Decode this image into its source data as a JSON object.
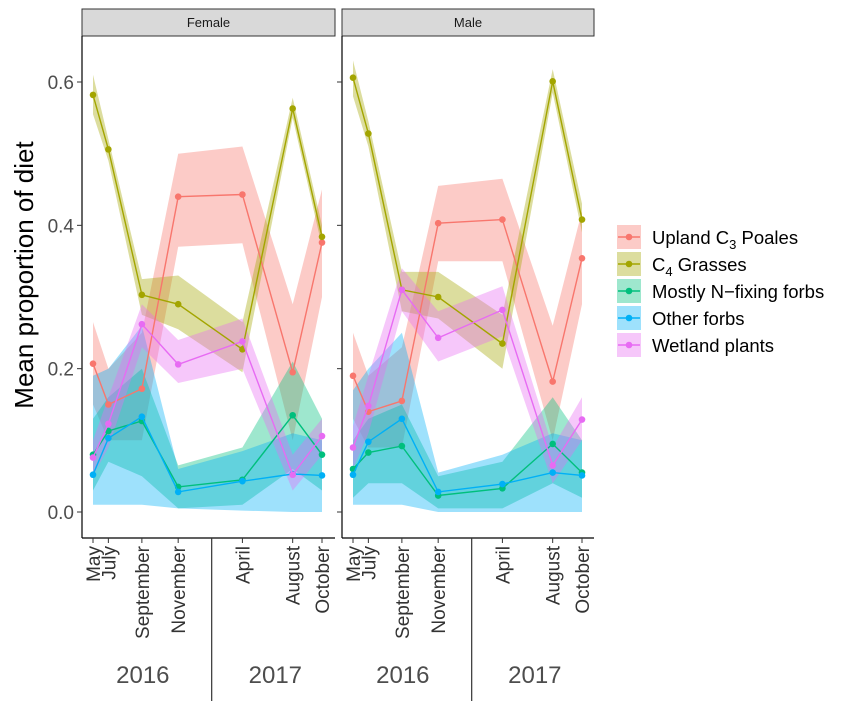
{
  "chart_data": {
    "type": "line",
    "ylabel": "Mean proportion of diet",
    "ylim": [
      0,
      0.65
    ],
    "yticks": [
      0.0,
      0.2,
      0.4,
      0.6
    ],
    "ytick_labels": [
      "0.0",
      "0.2",
      "0.4",
      "0.6"
    ],
    "grid": false,
    "legend_position": "right",
    "x_tick_labels": [
      "May",
      "July",
      "September",
      "November",
      "April",
      "August",
      "October"
    ],
    "x_tick_positions": [
      0,
      0.55,
      1.75,
      3.05,
      5.35,
      7.15,
      8.2
    ],
    "year_labels": [
      "2016",
      "2017"
    ],
    "panels": [
      {
        "title": "Female",
        "series": [
          {
            "name": "Upland C3 Poales",
            "color": "#F8766D",
            "x": [
              0,
              0.55,
              1.75,
              3.05,
              5.35,
              7.15,
              8.2
            ],
            "y": [
              0.207,
              0.15,
              0.172,
              0.44,
              0.443,
              0.195,
              0.376
            ],
            "lower": [
              0.15,
              0.1,
              0.1,
              0.37,
              0.375,
              0.1,
              0.3
            ],
            "upper": [
              0.265,
              0.2,
              0.25,
              0.5,
              0.51,
              0.29,
              0.45
            ]
          },
          {
            "name": "C4 Grasses",
            "color": "#A3A500",
            "x": [
              0,
              0.55,
              1.75,
              3.05,
              5.35,
              7.15,
              8.2
            ],
            "y": [
              0.582,
              0.506,
              0.303,
              0.29,
              0.227,
              0.563,
              0.384
            ],
            "lower": [
              0.555,
              0.49,
              0.275,
              0.255,
              0.195,
              0.55,
              0.37
            ],
            "upper": [
              0.61,
              0.52,
              0.325,
              0.33,
              0.265,
              0.578,
              0.4
            ]
          },
          {
            "name": "Mostly N−fixing forbs",
            "color": "#00BF7D",
            "x": [
              0,
              0.55,
              1.75,
              3.05,
              5.35,
              7.15,
              8.2
            ],
            "y": [
              0.08,
              0.113,
              0.127,
              0.035,
              0.045,
              0.135,
              0.08
            ],
            "lower": [
              0.03,
              0.07,
              0.05,
              0.005,
              0.01,
              0.06,
              0.03
            ],
            "upper": [
              0.13,
              0.16,
              0.2,
              0.065,
              0.09,
              0.21,
              0.13
            ]
          },
          {
            "name": "Other forbs",
            "color": "#00B0F6",
            "x": [
              0,
              0.55,
              1.75,
              3.05,
              5.35,
              7.15,
              8.2
            ],
            "y": [
              0.052,
              0.103,
              0.133,
              0.028,
              0.043,
              0.053,
              0.051
            ],
            "lower": [
              0.01,
              0.01,
              0.01,
              0.005,
              0.002,
              0.0,
              0.0
            ],
            "upper": [
              0.19,
              0.2,
              0.26,
              0.06,
              0.085,
              0.11,
              0.1
            ]
          },
          {
            "name": "Wetland plants",
            "color": "#E76BF3",
            "x": [
              0,
              0.55,
              1.75,
              3.05,
              5.35,
              7.15,
              8.2
            ],
            "y": [
              0.076,
              0.123,
              0.262,
              0.206,
              0.238,
              0.052,
              0.106
            ],
            "lower": [
              0.05,
              0.09,
              0.23,
              0.18,
              0.2,
              0.03,
              0.08
            ],
            "upper": [
              0.1,
              0.16,
              0.29,
              0.24,
              0.27,
              0.08,
              0.13
            ]
          }
        ]
      },
      {
        "title": "Male",
        "series": [
          {
            "name": "Upland C3 Poales",
            "color": "#F8766D",
            "x": [
              0,
              0.55,
              1.75,
              3.05,
              5.35,
              7.15,
              8.2
            ],
            "y": [
              0.19,
              0.14,
              0.155,
              0.403,
              0.408,
              0.182,
              0.354
            ],
            "lower": [
              0.13,
              0.09,
              0.09,
              0.35,
              0.35,
              0.1,
              0.29
            ],
            "upper": [
              0.25,
              0.19,
              0.23,
              0.455,
              0.465,
              0.26,
              0.42
            ]
          },
          {
            "name": "C4 Grasses",
            "color": "#A3A500",
            "x": [
              0,
              0.55,
              1.75,
              3.05,
              5.35,
              7.15,
              8.2
            ],
            "y": [
              0.606,
              0.528,
              0.31,
              0.3,
              0.235,
              0.601,
              0.408
            ],
            "lower": [
              0.58,
              0.51,
              0.28,
              0.27,
              0.2,
              0.585,
              0.39
            ],
            "upper": [
              0.63,
              0.545,
              0.335,
              0.335,
              0.275,
              0.618,
              0.43
            ]
          },
          {
            "name": "Mostly N−fixing forbs",
            "color": "#00BF7D",
            "x": [
              0,
              0.55,
              1.75,
              3.05,
              5.35,
              7.15,
              8.2
            ],
            "y": [
              0.06,
              0.083,
              0.092,
              0.023,
              0.033,
              0.095,
              0.055
            ],
            "lower": [
              0.02,
              0.04,
              0.04,
              0.005,
              0.005,
              0.04,
              0.02
            ],
            "upper": [
              0.1,
              0.13,
              0.15,
              0.05,
              0.07,
              0.16,
              0.1
            ]
          },
          {
            "name": "Other forbs",
            "color": "#00B0F6",
            "x": [
              0,
              0.55,
              1.75,
              3.05,
              5.35,
              7.15,
              8.2
            ],
            "y": [
              0.052,
              0.098,
              0.13,
              0.028,
              0.039,
              0.055,
              0.051
            ],
            "lower": [
              0.01,
              0.01,
              0.01,
              0.0,
              0.0,
              0.0,
              0.0
            ],
            "upper": [
              0.17,
              0.2,
              0.25,
              0.055,
              0.08,
              0.11,
              0.1
            ]
          },
          {
            "name": "Wetland plants",
            "color": "#E76BF3",
            "x": [
              0,
              0.55,
              1.75,
              3.05,
              5.35,
              7.15,
              8.2
            ],
            "y": [
              0.09,
              0.148,
              0.31,
              0.243,
              0.282,
              0.065,
              0.129
            ],
            "lower": [
              0.06,
              0.11,
              0.28,
              0.21,
              0.245,
              0.04,
              0.1
            ],
            "upper": [
              0.12,
              0.19,
              0.34,
              0.28,
              0.315,
              0.09,
              0.16
            ]
          }
        ]
      }
    ],
    "legend": {
      "entries": [
        {
          "pre": "Upland C",
          "sub": "3",
          "post": " Poales",
          "color": "#F8766D"
        },
        {
          "pre": "C",
          "sub": "4",
          "post": " Grasses",
          "color": "#A3A500"
        },
        {
          "pre": "Mostly N−fixing forbs",
          "sub": "",
          "post": "",
          "color": "#00BF7D"
        },
        {
          "pre": "Other forbs",
          "sub": "",
          "post": "",
          "color": "#00B0F6"
        },
        {
          "pre": "Wetland plants",
          "sub": "",
          "post": "",
          "color": "#E76BF3"
        }
      ]
    }
  }
}
